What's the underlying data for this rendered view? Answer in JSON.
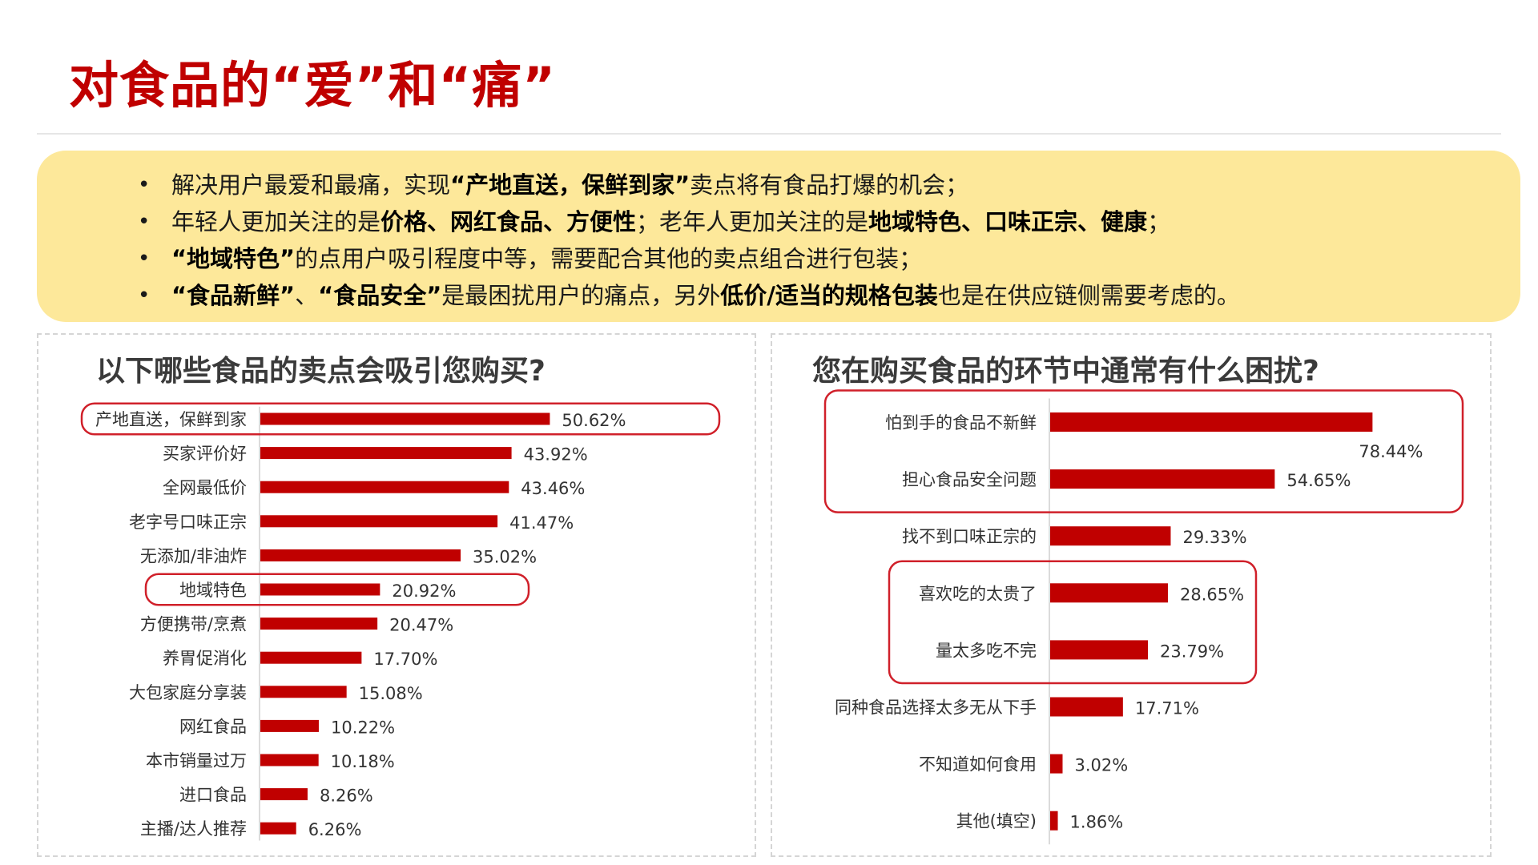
{
  "page": {
    "title": "对食品的“爱”和“痛”"
  },
  "summary": {
    "bullets": [
      [
        {
          "t": "解决用户最爱和最痛，实现",
          "b": false
        },
        {
          "t": "“产地直送，保鲜到家”",
          "b": true
        },
        {
          "t": "卖点将有食品打爆的机会；",
          "b": false
        }
      ],
      [
        {
          "t": "年轻人更加关注的是",
          "b": false
        },
        {
          "t": "价格、网红食品、方便性",
          "b": true
        },
        {
          "t": "；老年人更加关注的是",
          "b": false
        },
        {
          "t": "地域特色、口味正宗、健康",
          "b": true
        },
        {
          "t": "；",
          "b": false
        }
      ],
      [
        {
          "t": "“地域特色”",
          "b": true
        },
        {
          "t": "的点用户吸引程度中等，需要配合其他的卖点组合进行包装；",
          "b": false
        }
      ],
      [
        {
          "t": "“食品新鲜”",
          "b": true
        },
        {
          "t": "、",
          "b": false
        },
        {
          "t": "“食品安全”",
          "b": true
        },
        {
          "t": "是最困扰用户的痛点，另外",
          "b": false
        },
        {
          "t": "低价/适当的规格包装",
          "b": true
        },
        {
          "t": "也是在供应链侧需要考虑的。",
          "b": false
        }
      ]
    ]
  },
  "colors": {
    "bar": "#c00000",
    "highlight": "#d0202a",
    "title": "#c00000"
  },
  "chart_data": [
    {
      "type": "bar",
      "orientation": "horizontal",
      "title": "以下哪些食品的卖点会吸引您购买?",
      "unit": "%",
      "xlim": [
        0,
        60
      ],
      "categories": [
        "产地直送，保鲜到家",
        "买家评价好",
        "全网最低价",
        "老字号口味正宗",
        "无添加/非油炸",
        "地域特色",
        "方便携带/烹煮",
        "养胃促消化",
        "大包家庭分享装",
        "网红食品",
        "本市销量过万",
        "进口食品",
        "主播/达人推荐"
      ],
      "values": [
        50.62,
        43.92,
        43.46,
        41.47,
        35.02,
        20.92,
        20.47,
        17.7,
        15.08,
        10.22,
        10.18,
        8.26,
        6.26
      ],
      "value_labels": [
        "50.62%",
        "43.92%",
        "43.46%",
        "41.47%",
        "35.02%",
        "20.92%",
        "20.47%",
        "17.70%",
        "15.08%",
        "10.22%",
        "10.18%",
        "8.26%",
        "6.26%"
      ],
      "highlight_groups": [
        [
          0
        ],
        [
          5
        ]
      ]
    },
    {
      "type": "bar",
      "orientation": "horizontal",
      "title": "您在购买食品的环节中通常有什么困扰?",
      "unit": "%",
      "xlim": [
        0,
        80
      ],
      "categories": [
        "怕到手的食品不新鲜",
        "担心食品安全问题",
        "找不到口味正宗的",
        "喜欢吃的太贵了",
        "量太多吃不完",
        "同种食品选择太多无从下手",
        "不知道如何食用",
        "其他(填空)"
      ],
      "values": [
        78.44,
        54.65,
        29.33,
        28.65,
        23.79,
        17.71,
        3.02,
        1.86
      ],
      "value_labels": [
        "78.44%",
        "54.65%",
        "29.33%",
        "28.65%",
        "23.79%",
        "17.71%",
        "3.02%",
        "1.86%"
      ],
      "highlight_groups": [
        [
          0,
          1
        ],
        [
          3,
          4
        ]
      ]
    }
  ]
}
